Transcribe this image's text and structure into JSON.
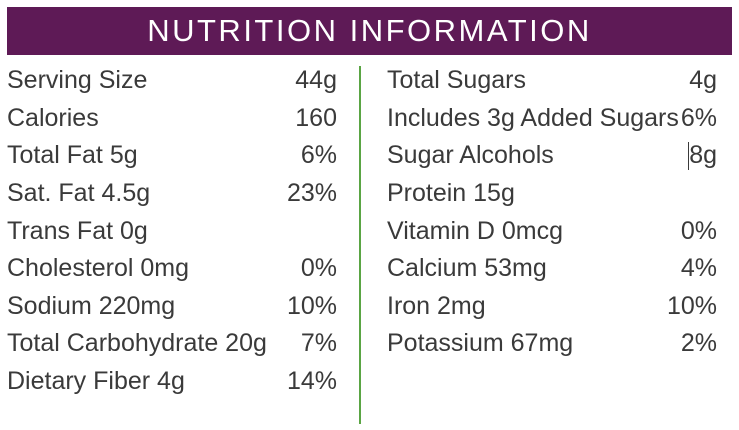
{
  "title": "NUTRITION INFORMATION",
  "colors": {
    "header_bg": "#5e1a56",
    "header_text": "#ffffff",
    "divider": "#5aa544",
    "text": "#3a3a3a"
  },
  "left": [
    {
      "label": "Serving Size",
      "value": "44g"
    },
    {
      "label": "Calories",
      "value": "160"
    },
    {
      "label": "Total Fat 5g",
      "value": "6%"
    },
    {
      "label": "Sat. Fat 4.5g",
      "value": "23%"
    },
    {
      "label": "Trans Fat 0g",
      "value": ""
    },
    {
      "label": "Cholesterol 0mg",
      "value": "0%"
    },
    {
      "label": "Sodium 220mg",
      "value": "10%"
    },
    {
      "label": "Total Carbohydrate 20g",
      "value": "7%"
    },
    {
      "label": "Dietary Fiber 4g",
      "value": "14%"
    }
  ],
  "right": [
    {
      "label": "Total Sugars",
      "value": "4g"
    },
    {
      "label": "Includes 3g Added Sugars",
      "value": "6%"
    },
    {
      "label": "Sugar Alcohols",
      "value": "8g"
    },
    {
      "label": "Protein 15g",
      "value": ""
    },
    {
      "label": "Vitamin D 0mcg",
      "value": "0%"
    },
    {
      "label": "Calcium 53mg",
      "value": "4%"
    },
    {
      "label": "Iron 2mg",
      "value": "10%"
    },
    {
      "label": "Potassium 67mg",
      "value": "2%"
    }
  ]
}
